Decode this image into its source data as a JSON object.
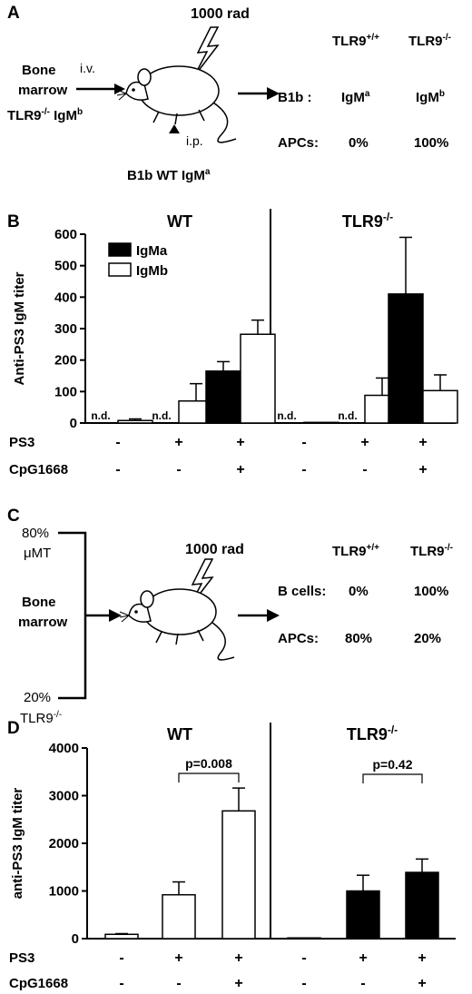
{
  "panelA": {
    "letter": "A",
    "rad": "1000 rad",
    "donor_line1": "Bone",
    "donor_line2": "marrow",
    "donor_line3": "TLR9",
    "donor_sup3": "-/-",
    "donor_line3b": " IgM",
    "donor_sup3b": "b",
    "iv": "i.v.",
    "ip": "i.p.",
    "recipient": "B1b WT IgM",
    "recipient_sup": "a",
    "col1": "TLR9",
    "col1_sup": "+/+",
    "col2": "TLR9",
    "col2_sup": "-/-",
    "row1_label": "B1b :",
    "row1_v1": "IgM",
    "row1_v1_sup": "a",
    "row1_v2": "IgM",
    "row1_v2_sup": "b",
    "row2_label": "APCs:",
    "row2_v1": "0%",
    "row2_v2": "100%"
  },
  "panelC": {
    "letter": "C",
    "rad": "1000 rad",
    "top_pct": "80%",
    "top_label": "μMT",
    "mid1": "Bone",
    "mid2": "marrow",
    "bot_pct": "20%",
    "bot_label": "TLR9",
    "bot_sup": "-/-",
    "col1": "TLR9",
    "col1_sup": "+/+",
    "col2": "TLR9",
    "col2_sup": "-/-",
    "row1_label": "B cells:",
    "row1_v1": "0%",
    "row1_v2": "100%",
    "row2_label": "APCs:",
    "row2_v1": "80%",
    "row2_v2": "20%"
  },
  "chart_data": [
    {
      "panel": "B",
      "type": "bar",
      "ylabel": "Anti-PS3 IgM titer",
      "ylim": [
        0,
        600
      ],
      "yticks": [
        0,
        100,
        200,
        300,
        400,
        500,
        600
      ],
      "groups": [
        {
          "title": "WT",
          "title_sup": ""
        },
        {
          "title": "TLR9",
          "title_sup": "-/-"
        }
      ],
      "legend": [
        {
          "label": "IgMa",
          "color": "#000000"
        },
        {
          "label": "IgMb",
          "color": "#ffffff"
        }
      ],
      "bars": [
        {
          "group": 0,
          "cond": 0,
          "series": "IgMa",
          "value": 0,
          "err": 0,
          "label": "n.d."
        },
        {
          "group": 0,
          "cond": 0,
          "series": "IgMb",
          "value": 8,
          "err": 5,
          "label": ""
        },
        {
          "group": 0,
          "cond": 1,
          "series": "IgMa",
          "value": 0,
          "err": 0,
          "label": "n.d."
        },
        {
          "group": 0,
          "cond": 1,
          "series": "IgMb",
          "value": 70,
          "err": 55,
          "label": ""
        },
        {
          "group": 0,
          "cond": 2,
          "series": "IgMa",
          "value": 165,
          "err": 30,
          "label": ""
        },
        {
          "group": 0,
          "cond": 2,
          "series": "IgMb",
          "value": 282,
          "err": 45,
          "label": ""
        },
        {
          "group": 1,
          "cond": 0,
          "series": "IgMa",
          "value": 0,
          "err": 0,
          "label": "n.d."
        },
        {
          "group": 1,
          "cond": 0,
          "series": "IgMb",
          "value": 2,
          "err": 0,
          "label": ""
        },
        {
          "group": 1,
          "cond": 1,
          "series": "IgMa",
          "value": 0,
          "err": 0,
          "label": "n.d."
        },
        {
          "group": 1,
          "cond": 1,
          "series": "IgMb",
          "value": 88,
          "err": 55,
          "label": ""
        },
        {
          "group": 1,
          "cond": 2,
          "series": "IgMa",
          "value": 410,
          "err": 180,
          "label": ""
        },
        {
          "group": 1,
          "cond": 2,
          "series": "IgMb",
          "value": 103,
          "err": 50,
          "label": ""
        }
      ],
      "conditions": [
        {
          "name": "PS3",
          "values": [
            "-",
            "+",
            "+",
            "-",
            "+",
            "+"
          ]
        },
        {
          "name": "CpG1668",
          "values": [
            "-",
            "-",
            "+",
            "-",
            "-",
            "+"
          ]
        }
      ]
    },
    {
      "panel": "D",
      "type": "bar",
      "ylabel": "anti-PS3 IgM titer",
      "ylim": [
        0,
        4000
      ],
      "yticks": [
        0,
        1000,
        2000,
        3000,
        4000
      ],
      "groups": [
        {
          "title": "WT",
          "title_sup": ""
        },
        {
          "title": "TLR9",
          "title_sup": "-/-"
        }
      ],
      "bars": [
        {
          "group": 0,
          "cond": 0,
          "value": 90,
          "err": 15,
          "fill": "#ffffff"
        },
        {
          "group": 0,
          "cond": 1,
          "value": 920,
          "err": 270,
          "fill": "#ffffff"
        },
        {
          "group": 0,
          "cond": 2,
          "value": 2680,
          "err": 480,
          "fill": "#ffffff"
        },
        {
          "group": 1,
          "cond": 0,
          "value": 15,
          "err": 0,
          "fill": "#000000"
        },
        {
          "group": 1,
          "cond": 1,
          "value": 1000,
          "err": 330,
          "fill": "#000000"
        },
        {
          "group": 1,
          "cond": 2,
          "value": 1390,
          "err": 280,
          "fill": "#000000"
        }
      ],
      "pvalues": [
        {
          "text": "p=0.008",
          "from_cond": 1,
          "to_cond": 2,
          "group": 0
        },
        {
          "text": "p=0.42",
          "from_cond": 1,
          "to_cond": 2,
          "group": 1
        }
      ],
      "conditions": [
        {
          "name": "PS3",
          "values": [
            "-",
            "+",
            "+",
            "-",
            "+",
            "+"
          ]
        },
        {
          "name": "CpG1668",
          "values": [
            "-",
            "-",
            "+",
            "-",
            "-",
            "+"
          ]
        }
      ]
    }
  ]
}
